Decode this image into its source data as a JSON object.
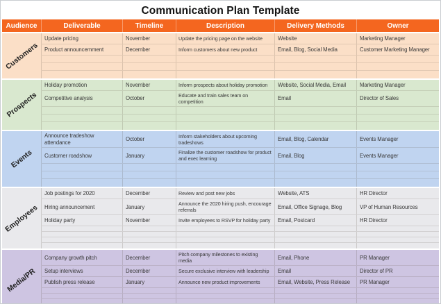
{
  "title": "Communication Plan Template",
  "colors": {
    "header_bg": "#F4661F",
    "header_text": "#FFFFFF",
    "customers_bg": "#FBDFC7",
    "prospects_bg": "#D9E8CF",
    "events_bg": "#C0D4F0",
    "employees_bg": "#E9E9EC",
    "media_pr_bg": "#CEC5E2"
  },
  "table": {
    "columns": [
      "Audience",
      "Deliverable",
      "Timeline",
      "Description",
      "Delivery Methods",
      "Owner"
    ],
    "sections": [
      {
        "audience": "Customers",
        "color": "#FBDFC7",
        "rows": [
          {
            "deliverable": "Update pricing",
            "timeline": "November",
            "description": "Update the pricing page on the website",
            "delivery_methods": "Website",
            "owner": "Marketing Manager"
          },
          {
            "deliverable": "Product announcemment",
            "timeline": "December",
            "description": "Inform customers about new product",
            "delivery_methods": "Email, Blog, Social Media",
            "owner": "Customer Marketing Manager"
          },
          {},
          {},
          {}
        ]
      },
      {
        "audience": "Prospects",
        "color": "#D9E8CF",
        "rows": [
          {
            "deliverable": "Holiday promotion",
            "timeline": "November",
            "description": "Inform prospects about holiday promotion",
            "delivery_methods": "Website, Social Media, Email",
            "owner": "Marketing Manager"
          },
          {
            "deliverable": "Competitive analysis",
            "timeline": "October",
            "description": "Educate and train sales team on competition",
            "delivery_methods": "Email",
            "owner": "Director of Sales"
          },
          {},
          {},
          {}
        ]
      },
      {
        "audience": "Events",
        "color": "#C0D4F0",
        "rows": [
          {
            "deliverable": "Announce tradeshow attendance",
            "timeline": "October",
            "description": "Inform stakeholders about upcoming tradeshows",
            "delivery_methods": "Email, Blog, Calendar",
            "owner": "Events Manager"
          },
          {
            "deliverable": "Customer roadshow",
            "timeline": "January",
            "description": "Finalize the customer roadshow for product and exec learning",
            "delivery_methods": "Email, Blog",
            "owner": "Events Manager"
          },
          {},
          {},
          {}
        ]
      },
      {
        "audience": "Employees",
        "color": "#E9E9EC",
        "rows": [
          {
            "deliverable": "Job postings for 2020",
            "timeline": "December",
            "description": "Review and post new jobs",
            "delivery_methods": "Website, ATS",
            "owner": "HR Director"
          },
          {
            "deliverable": "Hiring announcement",
            "timeline": "January",
            "description": "Announce the 2020 hiring push, encourage referrals",
            "delivery_methods": "Email, Office Signage, Blog",
            "owner": "VP of Human Resources"
          },
          {
            "deliverable": "Holiday party",
            "timeline": "November",
            "description": "Invite employees to RSVP for holiday party",
            "delivery_methods": "Email, Postcard",
            "owner": "HR Director"
          },
          {},
          {},
          {},
          {}
        ]
      },
      {
        "audience": "Media/PR",
        "color": "#CEC5E2",
        "rows": [
          {
            "deliverable": "Company growth pitch",
            "timeline": "December",
            "description": "Pitch company milestones to existing media",
            "delivery_methods": "Email, Phone",
            "owner": "PR Manager"
          },
          {
            "deliverable": "Setup interviews",
            "timeline": "December",
            "description": "Secure exclusive interview with leadership",
            "delivery_methods": "Email",
            "owner": "Director of PR"
          },
          {
            "deliverable": "Publish press release",
            "timeline": "January",
            "description": "Announce new product improvements",
            "delivery_methods": "Email, Website, Press Release",
            "owner": "PR Manager"
          },
          {},
          {},
          {},
          {}
        ]
      }
    ]
  }
}
